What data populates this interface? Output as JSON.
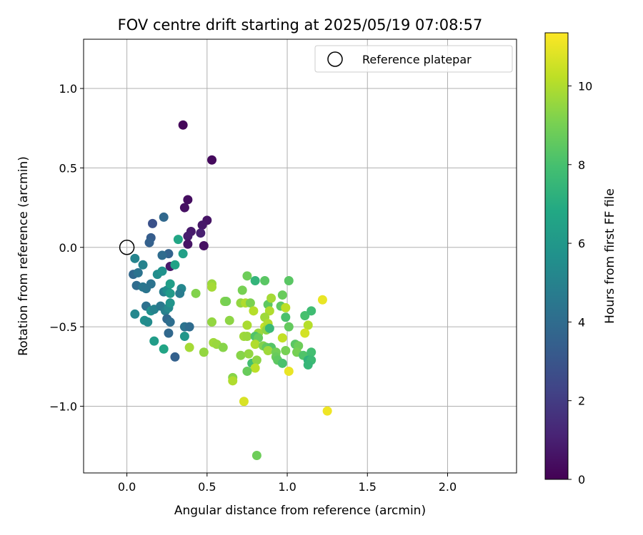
{
  "chart_data": {
    "type": "scatter",
    "title": "FOV centre drift starting at 2025/05/19 07:08:57",
    "xlabel": "Angular distance from reference (arcmin)",
    "ylabel": "Rotation from reference (arcmin)",
    "xlim": [
      -0.27,
      2.43
    ],
    "ylim": [
      -1.42,
      1.31
    ],
    "xticks": [
      0.0,
      0.5,
      1.0,
      1.5,
      2.0
    ],
    "xtick_labels": [
      "0.0",
      "0.5",
      "1.0",
      "1.5",
      "2.0"
    ],
    "yticks": [
      -1.0,
      -0.5,
      0.0,
      0.5,
      1.0
    ],
    "ytick_labels": [
      "−1.0",
      "−0.5",
      "0.0",
      "0.5",
      "1.0"
    ],
    "grid": true,
    "legend": {
      "placement": "top-right",
      "entries": [
        "Reference platepar"
      ]
    },
    "reference_point": {
      "x": 0.0,
      "y": 0.0
    },
    "colorbar": {
      "label": "Hours from first FF file",
      "min": 0,
      "max": 11.35,
      "ticks": [
        0,
        2,
        4,
        6,
        8,
        10
      ],
      "tick_labels": [
        "0",
        "2",
        "4",
        "6",
        "8",
        "10"
      ],
      "colormap": "viridis"
    },
    "points": [
      {
        "x": 0.35,
        "y": 0.77,
        "c": 0.2
      },
      {
        "x": 0.53,
        "y": 0.55,
        "c": 0.3
      },
      {
        "x": 0.38,
        "y": 0.3,
        "c": 0.4
      },
      {
        "x": 0.36,
        "y": 0.25,
        "c": 0.5
      },
      {
        "x": 0.5,
        "y": 0.17,
        "c": 0.6
      },
      {
        "x": 0.47,
        "y": 0.14,
        "c": 0.7
      },
      {
        "x": 0.4,
        "y": 0.1,
        "c": 0.8
      },
      {
        "x": 0.38,
        "y": 0.07,
        "c": 0.9
      },
      {
        "x": 0.46,
        "y": 0.09,
        "c": 1.0
      },
      {
        "x": 0.38,
        "y": 0.02,
        "c": 0.6
      },
      {
        "x": 0.48,
        "y": 0.01,
        "c": 0.5
      },
      {
        "x": 0.27,
        "y": -0.12,
        "c": 0.8
      },
      {
        "x": 0.16,
        "y": 0.15,
        "c": 2.8
      },
      {
        "x": 0.15,
        "y": 0.06,
        "c": 3.3
      },
      {
        "x": 0.14,
        "y": 0.03,
        "c": 3.5
      },
      {
        "x": 0.23,
        "y": 0.19,
        "c": 3.8
      },
      {
        "x": 0.32,
        "y": 0.05,
        "c": 6.7
      },
      {
        "x": 0.35,
        "y": -0.04,
        "c": 6.4
      },
      {
        "x": 0.26,
        "y": -0.04,
        "c": 3.6
      },
      {
        "x": 0.22,
        "y": -0.05,
        "c": 4.0
      },
      {
        "x": 0.05,
        "y": -0.07,
        "c": 5.1
      },
      {
        "x": 0.1,
        "y": -0.11,
        "c": 5.0
      },
      {
        "x": 0.04,
        "y": -0.17,
        "c": 3.8
      },
      {
        "x": 0.07,
        "y": -0.16,
        "c": 4.3
      },
      {
        "x": 0.19,
        "y": -0.17,
        "c": 5.5
      },
      {
        "x": 0.3,
        "y": -0.11,
        "c": 6.5
      },
      {
        "x": 0.22,
        "y": -0.15,
        "c": 5.7
      },
      {
        "x": 0.06,
        "y": -0.24,
        "c": 4.0
      },
      {
        "x": 0.1,
        "y": -0.25,
        "c": 4.5
      },
      {
        "x": 0.12,
        "y": -0.26,
        "c": 4.4
      },
      {
        "x": 0.15,
        "y": -0.23,
        "c": 4.3
      },
      {
        "x": 0.23,
        "y": -0.28,
        "c": 4.8
      },
      {
        "x": 0.25,
        "y": -0.27,
        "c": 5.5
      },
      {
        "x": 0.27,
        "y": -0.23,
        "c": 6.3
      },
      {
        "x": 0.27,
        "y": -0.29,
        "c": 6.1
      },
      {
        "x": 0.34,
        "y": -0.26,
        "c": 5.2
      },
      {
        "x": 0.33,
        "y": -0.29,
        "c": 4.7
      },
      {
        "x": 0.12,
        "y": -0.37,
        "c": 4.2
      },
      {
        "x": 0.15,
        "y": -0.4,
        "c": 5.6
      },
      {
        "x": 0.17,
        "y": -0.39,
        "c": 5.0
      },
      {
        "x": 0.21,
        "y": -0.37,
        "c": 4.6
      },
      {
        "x": 0.24,
        "y": -0.4,
        "c": 4.9
      },
      {
        "x": 0.26,
        "y": -0.38,
        "c": 5.3
      },
      {
        "x": 0.27,
        "y": -0.35,
        "c": 5.8
      },
      {
        "x": 0.05,
        "y": -0.42,
        "c": 5.2
      },
      {
        "x": 0.11,
        "y": -0.46,
        "c": 5.6
      },
      {
        "x": 0.13,
        "y": -0.47,
        "c": 5.4
      },
      {
        "x": 0.25,
        "y": -0.45,
        "c": 3.8
      },
      {
        "x": 0.27,
        "y": -0.47,
        "c": 4.1
      },
      {
        "x": 0.36,
        "y": -0.5,
        "c": 4.3
      },
      {
        "x": 0.39,
        "y": -0.5,
        "c": 4.0
      },
      {
        "x": 0.36,
        "y": -0.56,
        "c": 5.9
      },
      {
        "x": 0.26,
        "y": -0.54,
        "c": 3.8
      },
      {
        "x": 0.17,
        "y": -0.59,
        "c": 6.2
      },
      {
        "x": 0.23,
        "y": -0.64,
        "c": 6.6
      },
      {
        "x": 0.3,
        "y": -0.69,
        "c": 3.5
      },
      {
        "x": 0.43,
        "y": -0.29,
        "c": 9.2
      },
      {
        "x": 0.53,
        "y": -0.23,
        "c": 9.6
      },
      {
        "x": 0.53,
        "y": -0.25,
        "c": 9.8
      },
      {
        "x": 0.61,
        "y": -0.34,
        "c": 9.2
      },
      {
        "x": 0.62,
        "y": -0.34,
        "c": 9.0
      },
      {
        "x": 0.64,
        "y": -0.46,
        "c": 9.4
      },
      {
        "x": 0.53,
        "y": -0.47,
        "c": 9.5
      },
      {
        "x": 0.54,
        "y": -0.6,
        "c": 9.7
      },
      {
        "x": 0.56,
        "y": -0.61,
        "c": 9.6
      },
      {
        "x": 0.6,
        "y": -0.63,
        "c": 9.3
      },
      {
        "x": 0.48,
        "y": -0.66,
        "c": 9.5
      },
      {
        "x": 0.39,
        "y": -0.63,
        "c": 9.8
      },
      {
        "x": 0.75,
        "y": -0.18,
        "c": 8.8
      },
      {
        "x": 0.8,
        "y": -0.21,
        "c": 7.4
      },
      {
        "x": 0.86,
        "y": -0.21,
        "c": 8.4
      },
      {
        "x": 0.72,
        "y": -0.27,
        "c": 9.0
      },
      {
        "x": 0.71,
        "y": -0.35,
        "c": 9.5
      },
      {
        "x": 0.74,
        "y": -0.35,
        "c": 10.0
      },
      {
        "x": 0.77,
        "y": -0.35,
        "c": 9.1
      },
      {
        "x": 0.79,
        "y": -0.4,
        "c": 10.1
      },
      {
        "x": 0.88,
        "y": -0.36,
        "c": 8.5
      },
      {
        "x": 0.9,
        "y": -0.32,
        "c": 9.8
      },
      {
        "x": 0.97,
        "y": -0.3,
        "c": 8.7
      },
      {
        "x": 1.01,
        "y": -0.21,
        "c": 8.4
      },
      {
        "x": 0.96,
        "y": -0.37,
        "c": 8.5
      },
      {
        "x": 0.99,
        "y": -0.38,
        "c": 10.2
      },
      {
        "x": 0.89,
        "y": -0.4,
        "c": 10.0
      },
      {
        "x": 0.86,
        "y": -0.44,
        "c": 9.7
      },
      {
        "x": 0.99,
        "y": -0.44,
        "c": 8.1
      },
      {
        "x": 1.11,
        "y": -0.43,
        "c": 8.0
      },
      {
        "x": 1.15,
        "y": -0.4,
        "c": 7.8
      },
      {
        "x": 1.22,
        "y": -0.33,
        "c": 11.0
      },
      {
        "x": 0.75,
        "y": -0.49,
        "c": 9.9
      },
      {
        "x": 0.82,
        "y": -0.54,
        "c": 9.6
      },
      {
        "x": 0.86,
        "y": -0.5,
        "c": 10.3
      },
      {
        "x": 0.88,
        "y": -0.48,
        "c": 10.0
      },
      {
        "x": 0.87,
        "y": -0.52,
        "c": 9.4
      },
      {
        "x": 0.89,
        "y": -0.51,
        "c": 7.6
      },
      {
        "x": 1.01,
        "y": -0.5,
        "c": 8.6
      },
      {
        "x": 1.13,
        "y": -0.49,
        "c": 10.1
      },
      {
        "x": 0.73,
        "y": -0.56,
        "c": 9.7
      },
      {
        "x": 0.75,
        "y": -0.56,
        "c": 9.6
      },
      {
        "x": 0.8,
        "y": -0.56,
        "c": 8.2
      },
      {
        "x": 0.82,
        "y": -0.57,
        "c": 8.7
      },
      {
        "x": 0.97,
        "y": -0.57,
        "c": 10.3
      },
      {
        "x": 1.11,
        "y": -0.54,
        "c": 10.6
      },
      {
        "x": 0.8,
        "y": -0.61,
        "c": 10.0
      },
      {
        "x": 0.85,
        "y": -0.62,
        "c": 9.2
      },
      {
        "x": 0.87,
        "y": -0.63,
        "c": 8.6
      },
      {
        "x": 0.9,
        "y": -0.63,
        "c": 8.3
      },
      {
        "x": 0.88,
        "y": -0.65,
        "c": 9.7
      },
      {
        "x": 0.93,
        "y": -0.66,
        "c": 8.9
      },
      {
        "x": 0.99,
        "y": -0.65,
        "c": 9.0
      },
      {
        "x": 1.05,
        "y": -0.61,
        "c": 8.4
      },
      {
        "x": 1.07,
        "y": -0.62,
        "c": 8.8
      },
      {
        "x": 1.06,
        "y": -0.66,
        "c": 9.0
      },
      {
        "x": 1.1,
        "y": -0.68,
        "c": 8.2
      },
      {
        "x": 1.15,
        "y": -0.66,
        "c": 7.9
      },
      {
        "x": 1.13,
        "y": -0.71,
        "c": 7.3
      },
      {
        "x": 1.15,
        "y": -0.71,
        "c": 7.7
      },
      {
        "x": 0.71,
        "y": -0.68,
        "c": 9.3
      },
      {
        "x": 0.76,
        "y": -0.67,
        "c": 9.5
      },
      {
        "x": 0.78,
        "y": -0.73,
        "c": 7.9
      },
      {
        "x": 0.81,
        "y": -0.71,
        "c": 9.4
      },
      {
        "x": 0.8,
        "y": -0.76,
        "c": 10.2
      },
      {
        "x": 0.75,
        "y": -0.78,
        "c": 8.7
      },
      {
        "x": 0.93,
        "y": -0.69,
        "c": 8.7
      },
      {
        "x": 0.94,
        "y": -0.71,
        "c": 8.5
      },
      {
        "x": 0.97,
        "y": -0.73,
        "c": 8.1
      },
      {
        "x": 1.13,
        "y": -0.74,
        "c": 7.5
      },
      {
        "x": 1.01,
        "y": -0.78,
        "c": 11.0
      },
      {
        "x": 0.66,
        "y": -0.82,
        "c": 9.3
      },
      {
        "x": 0.66,
        "y": -0.84,
        "c": 10.0
      },
      {
        "x": 0.73,
        "y": -0.97,
        "c": 10.7
      },
      {
        "x": 1.25,
        "y": -1.03,
        "c": 11.1
      },
      {
        "x": 0.81,
        "y": -1.31,
        "c": 8.8
      }
    ]
  }
}
